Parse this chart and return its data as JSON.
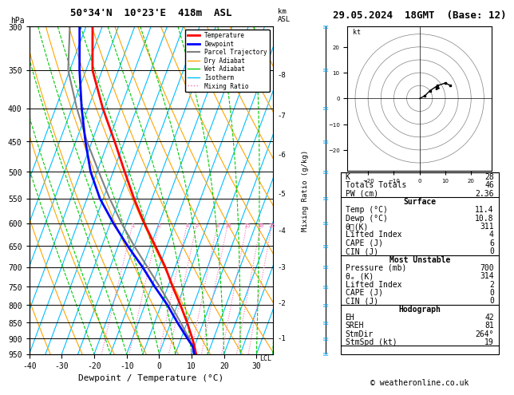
{
  "title_left": "50°34'N  10°23'E  418m  ASL",
  "title_right": "29.05.2024  18GMT  (Base: 12)",
  "label_hpa": "hPa",
  "label_km": "km\nASL",
  "xlabel": "Dewpoint / Temperature (°C)",
  "ylabel_mixing": "Mixing Ratio (g/kg)",
  "pressure_levels": [
    300,
    350,
    400,
    450,
    500,
    550,
    600,
    650,
    700,
    750,
    800,
    850,
    900,
    950
  ],
  "temp_range": [
    -40,
    35
  ],
  "background_color": "#ffffff",
  "isotherm_color": "#00bfff",
  "dry_adiabat_color": "#ffa500",
  "wet_adiabat_color": "#00cc00",
  "mixing_ratio_color": "#ff69b4",
  "temp_color": "#ff0000",
  "dewp_color": "#0000ff",
  "parcel_color": "#808080",
  "lcl_label": "LCL",
  "mixing_ratio_values": [
    1,
    2,
    4,
    5,
    8,
    10,
    15,
    20,
    25
  ],
  "table_data": {
    "K": "28",
    "Totals Totals": "46",
    "PW (cm)": "2.36",
    "Temp_C": "11.4",
    "Dewp_C": "10.8",
    "theta_e_surface": "311",
    "Lifted_Index_surface": "4",
    "CAPE_surface": "6",
    "CIN_surface": "0",
    "Pressure_mb": "700",
    "theta_e_mu": "314",
    "Lifted_Index_mu": "2",
    "CAPE_mu": "0",
    "CIN_mu": "0",
    "EH": "42",
    "SREH": "81",
    "StmDir": "264°",
    "StmSpd_kt": "19"
  },
  "legend_items": [
    {
      "label": "Temperature",
      "color": "#ff0000",
      "lw": 2,
      "ls": "-"
    },
    {
      "label": "Dewpoint",
      "color": "#0000ff",
      "lw": 2,
      "ls": "-"
    },
    {
      "label": "Parcel Trajectory",
      "color": "#808080",
      "lw": 1.5,
      "ls": "-"
    },
    {
      "label": "Dry Adiabat",
      "color": "#ffa500",
      "lw": 1,
      "ls": "-"
    },
    {
      "label": "Wet Adiabat",
      "color": "#00cc00",
      "lw": 1,
      "ls": "-"
    },
    {
      "label": "Isotherm",
      "color": "#00bfff",
      "lw": 1,
      "ls": "-"
    },
    {
      "label": "Mixing Ratio",
      "color": "#ff69b4",
      "lw": 1,
      "ls": ":"
    }
  ],
  "footer": "© weatheronline.co.uk",
  "temp_profile": {
    "pressure": [
      950,
      925,
      900,
      850,
      800,
      750,
      700,
      650,
      600,
      550,
      500,
      450,
      400,
      350,
      300
    ],
    "temperature": [
      11.4,
      10.0,
      8.5,
      5.0,
      1.0,
      -3.5,
      -8.0,
      -13.5,
      -19.5,
      -25.5,
      -31.5,
      -38.0,
      -45.5,
      -53.0,
      -58.0
    ]
  },
  "dewp_profile": {
    "pressure": [
      950,
      925,
      900,
      850,
      800,
      750,
      700,
      650,
      600,
      550,
      500,
      450,
      400,
      350,
      300
    ],
    "dewpoint": [
      10.8,
      9.5,
      7.0,
      2.0,
      -3.0,
      -9.0,
      -15.0,
      -22.0,
      -29.0,
      -36.0,
      -42.0,
      -47.0,
      -52.0,
      -57.0,
      -62.0
    ]
  },
  "parcel_profile": {
    "pressure": [
      950,
      900,
      850,
      800,
      750,
      700,
      650,
      600,
      550,
      500,
      450,
      400,
      350,
      300
    ],
    "temperature": [
      11.4,
      7.5,
      3.0,
      -2.0,
      -7.5,
      -13.5,
      -20.0,
      -26.5,
      -33.0,
      -39.5,
      -46.5,
      -53.5,
      -60.5,
      -65.0
    ]
  },
  "lcl_pressure": 948,
  "km_to_pressure": {
    "1": 900,
    "2": 795,
    "3": 701,
    "4": 616,
    "5": 541,
    "6": 472,
    "7": 411,
    "8": 356
  }
}
